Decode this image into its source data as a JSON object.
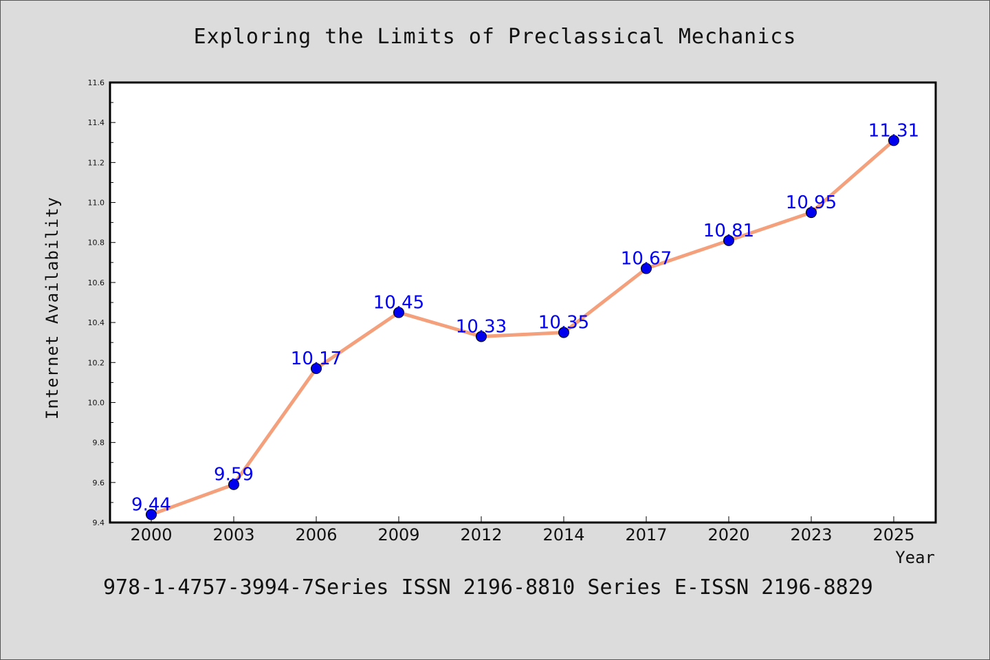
{
  "colors": {
    "background": "#dcdcdc",
    "plot_background": "#ffffff",
    "line": "#f4a07c",
    "marker": "#0000ee",
    "data_label": "#0000ee"
  },
  "footer_text": "978-1-4757-3994-7Series ISSN 2196-8810 Series E-ISSN 2196-8829",
  "chart_data": {
    "type": "line",
    "title": "Exploring the Limits of Preclassical Mechanics",
    "xlabel": "Year",
    "ylabel": "Internet Availability",
    "categories": [
      "2000",
      "2003",
      "2006",
      "2009",
      "2012",
      "2014",
      "2017",
      "2020",
      "2023",
      "2025"
    ],
    "series": [
      {
        "values": [
          9.44,
          9.59,
          10.17,
          10.45,
          10.33,
          10.35,
          10.67,
          10.81,
          10.95,
          11.31
        ]
      }
    ],
    "data_labels": [
      "9.44",
      "9.59",
      "10.17",
      "10.45",
      "10.33",
      "10.35",
      "10.67",
      "10.81",
      "10.95",
      "11.31"
    ],
    "yticks": [
      "9.4",
      "9.6",
      "9.8",
      "10.0",
      "10.2",
      "10.4",
      "10.6",
      "10.8",
      "11.0",
      "11.2",
      "11.4",
      "11.6"
    ],
    "ylim": [
      9.4,
      11.6
    ],
    "grid": false,
    "legend": "none"
  }
}
